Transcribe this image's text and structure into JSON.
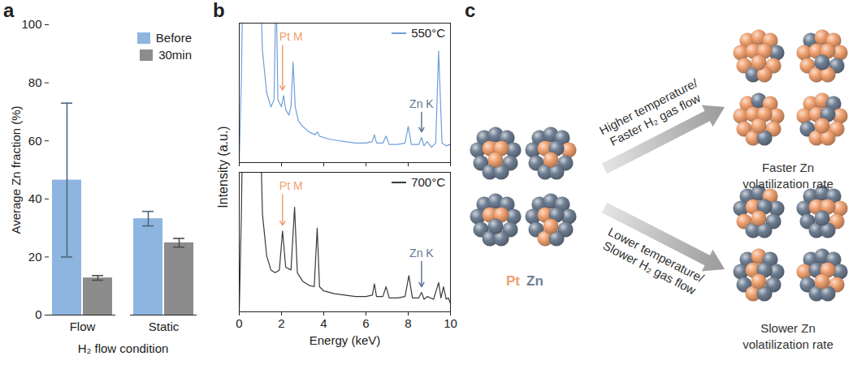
{
  "chart_data": [
    {
      "type": "bar",
      "panel_label": "a",
      "xlabel": "H₂ flow condition",
      "ylabel": "Average Zn fraction (%)",
      "categories": [
        "Flow",
        "Static"
      ],
      "series": [
        {
          "name": "Before",
          "color": "#8db5df",
          "values": [
            46.5,
            33.2
          ],
          "errors": [
            26.5,
            2.5
          ]
        },
        {
          "name": "30min",
          "color": "#8c8c8c",
          "values": [
            12.8,
            24.9
          ],
          "errors": [
            0.8,
            1.5
          ]
        }
      ],
      "ylim": [
        0,
        100
      ],
      "yticks": [
        0,
        20,
        40,
        60,
        80,
        100
      ],
      "legend": "top-right"
    },
    {
      "type": "line",
      "panel_label": "b",
      "xlabel": "Energy (keV)",
      "ylabel": "Intensity (a.u.)",
      "xlim": [
        0,
        10
      ],
      "xticks": [
        0,
        2,
        4,
        6,
        8,
        10
      ],
      "ylim": [
        0,
        100
      ],
      "yticks": [],
      "legend": "top-right",
      "panels": [
        {
          "tick_labels": false,
          "series": [
            {
              "name": "550°C",
              "color": "#6f9fd8",
              "x": [
                0,
                0.1,
                0.2,
                0.3,
                0.45,
                0.55,
                0.7,
                0.85,
                0.95,
                1.1,
                1.3,
                1.5,
                1.65,
                1.74,
                1.83,
                2.0,
                2.1,
                2.2,
                2.35,
                2.45,
                2.55,
                2.65,
                2.8,
                3.0,
                3.3,
                3.6,
                3.7,
                3.8,
                4.2,
                4.6,
                5.0,
                5.5,
                6.0,
                6.3,
                6.4,
                6.5,
                6.8,
                6.95,
                7.1,
                7.5,
                7.85,
                8.0,
                8.15,
                8.5,
                8.63,
                8.75,
                8.9,
                9.1,
                9.3,
                9.44,
                9.6,
                9.8,
                9.95,
                10
              ],
              "values": [
                0,
                60,
                160,
                200,
                160,
                200,
                180,
                200,
                150,
                80,
                50,
                40,
                45,
                130,
                45,
                40,
                48,
                38,
                34,
                40,
                72,
                40,
                30,
                26,
                22,
                20,
                22,
                19,
                17,
                16,
                15,
                14,
                14,
                15,
                20,
                14,
                14,
                19,
                13,
                13,
                14,
                26,
                13,
                13,
                18,
                12,
                15,
                11,
                14,
                80,
                14,
                12,
                13,
                12
              ]
            }
          ],
          "annotations": [
            {
              "text": "Pt M",
              "x": 2.05,
              "color": "#f0a070"
            },
            {
              "text": "Zn K",
              "x": 8.63,
              "color": "#5f7795"
            }
          ]
        },
        {
          "tick_labels": "x",
          "series": [
            {
              "name": "700°C",
              "color": "#3a3a3a",
              "x": [
                0,
                0.1,
                0.2,
                0.3,
                0.4,
                0.5,
                0.65,
                0.8,
                0.95,
                1.1,
                1.3,
                1.5,
                1.7,
                1.9,
                2.05,
                2.2,
                2.45,
                2.62,
                2.75,
                3.0,
                3.3,
                3.55,
                3.69,
                3.8,
                4.0,
                4.5,
                5.0,
                5.5,
                6.0,
                6.3,
                6.4,
                6.5,
                6.8,
                6.95,
                7.1,
                7.5,
                7.85,
                8.03,
                8.2,
                8.5,
                8.63,
                8.75,
                8.9,
                9.2,
                9.44,
                9.55,
                9.67,
                9.8,
                9.9,
                10
              ],
              "values": [
                0,
                70,
                170,
                200,
                160,
                200,
                150,
                190,
                160,
                70,
                40,
                30,
                28,
                30,
                58,
                32,
                30,
                75,
                28,
                22,
                19,
                18,
                60,
                18,
                15,
                13,
                12,
                11,
                11,
                12,
                20,
                11,
                11,
                18,
                10,
                10,
                11,
                26,
                10,
                10,
                14,
                9,
                11,
                9,
                21,
                10,
                18,
                9,
                10,
                6
              ]
            }
          ],
          "annotations": [
            {
              "text": "Pt M",
              "x": 2.05,
              "color": "#f0a070"
            },
            {
              "text": "Zn K",
              "x": 8.63,
              "color": "#5f7795"
            }
          ]
        }
      ]
    }
  ],
  "diagram": {
    "panel_label": "c",
    "legend": [
      {
        "name": "Pt",
        "color": "#f0a070"
      },
      {
        "name": "Zn",
        "color": "#6f7f93"
      }
    ],
    "arrows": [
      {
        "label": "Higher temperature/ Faster H₂ gas flow",
        "result": "Faster Zn volatilization rate"
      },
      {
        "label": "Lower temperature/ Slower H₂ gas flow",
        "result": "Slower Zn volatilization rate"
      }
    ]
  }
}
